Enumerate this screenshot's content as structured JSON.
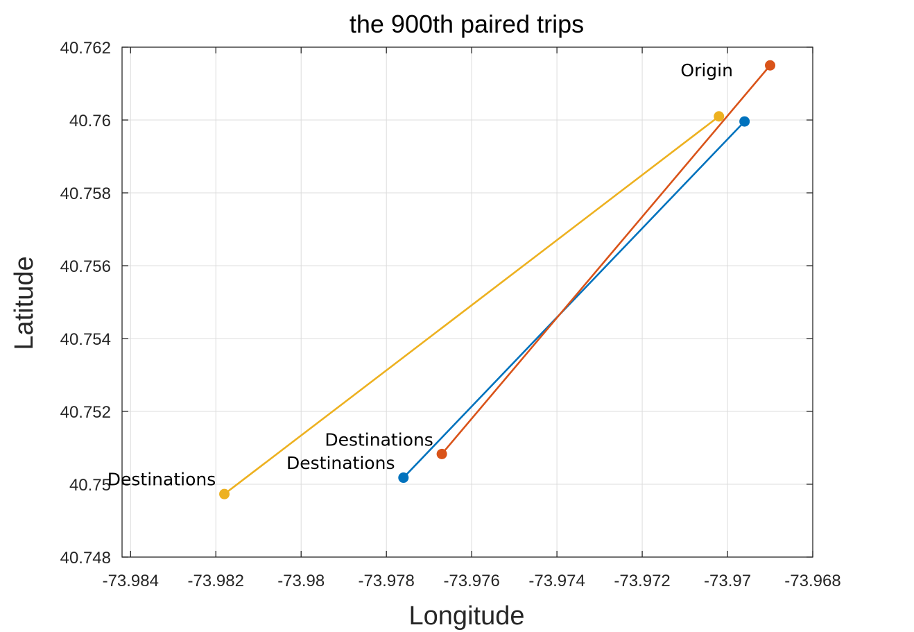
{
  "chart_data": {
    "type": "line",
    "title": "the 900th paired trips",
    "xlabel": "Longitude",
    "ylabel": "Latitude",
    "xlim": [
      -73.9842,
      -73.968
    ],
    "ylim": [
      40.748,
      40.762
    ],
    "xticks": [
      -73.984,
      -73.982,
      -73.98,
      -73.978,
      -73.976,
      -73.974,
      -73.972,
      -73.97,
      -73.968
    ],
    "xtick_labels": [
      "-73.984",
      "-73.982",
      "-73.98",
      "-73.978",
      "-73.976",
      "-73.974",
      "-73.972",
      "-73.97",
      "-73.968"
    ],
    "yticks": [
      40.748,
      40.75,
      40.752,
      40.754,
      40.756,
      40.758,
      40.76,
      40.762
    ],
    "ytick_labels": [
      "40.748",
      "40.75",
      "40.752",
      "40.754",
      "40.756",
      "40.758",
      "40.76",
      "40.762"
    ],
    "grid": true,
    "series": [
      {
        "color": "#0072BD",
        "x": [
          -73.9696,
          -73.9776
        ],
        "y": [
          40.75996,
          40.75018
        ]
      },
      {
        "color": "#D95319",
        "x": [
          -73.969,
          -73.9767
        ],
        "y": [
          40.7615,
          40.75083
        ]
      },
      {
        "color": "#EDB120",
        "x": [
          -73.9702,
          -73.9818
        ],
        "y": [
          40.7601,
          40.74973
        ]
      }
    ],
    "annotations": [
      {
        "text": "Origin",
        "x": -73.9711,
        "y": 40.7612,
        "anchor": "start"
      },
      {
        "text": "Destinations",
        "x": -73.9769,
        "y": 40.75106,
        "anchor": "end"
      },
      {
        "text": "Destinations",
        "x": -73.9778,
        "y": 40.75042,
        "anchor": "end"
      },
      {
        "text": "Destinations",
        "x": -73.982,
        "y": 40.74997,
        "anchor": "end"
      }
    ]
  }
}
